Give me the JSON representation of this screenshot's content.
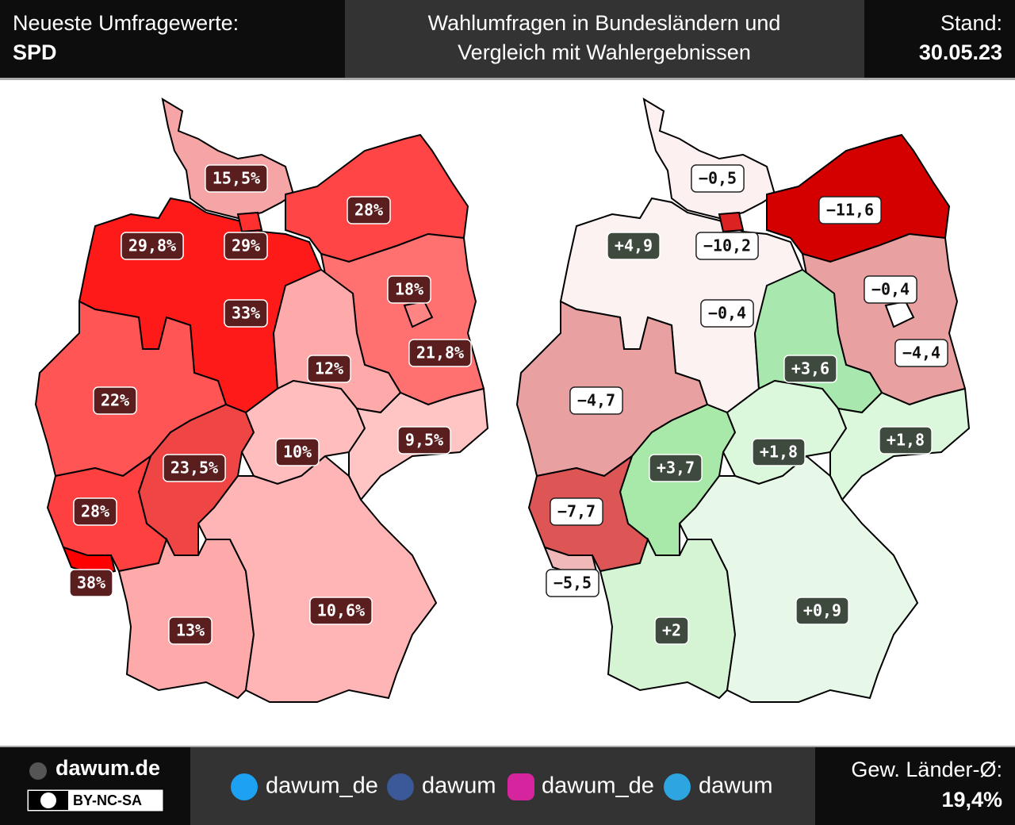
{
  "header": {
    "left_label": "Neueste Umfragewerte:",
    "party": "SPD",
    "title": [
      "Wahlumfragen in Bundesländern und",
      "Vergleich mit Wahlergebnissen"
    ],
    "stand_label": "Stand:",
    "date": "30.05.23"
  },
  "maps": [
    {
      "states": [
        {
          "label": "15,5%",
          "color": "#f5a5a5"
        },
        {
          "label": "29%",
          "color": "#ff3030"
        },
        {
          "label": "28%",
          "color": "#ff4545"
        },
        {
          "label": "33%",
          "color": "#ff1a1a"
        },
        {
          "label": "29,8%",
          "color": "#ff2a2a"
        },
        {
          "label": "18%",
          "color": "#ff8585"
        },
        {
          "label": "21,8%",
          "color": "#ff7070"
        },
        {
          "label": "12%",
          "color": "#ffaaaa"
        },
        {
          "label": "22%",
          "color": "#ff5555"
        },
        {
          "label": "23,5%",
          "color": "#f04545"
        },
        {
          "label": "10%",
          "color": "#ffbdbd"
        },
        {
          "label": "9,5%",
          "color": "#ffc4c4"
        },
        {
          "label": "28%",
          "color": "#ff4040"
        },
        {
          "label": "38%",
          "color": "#ff0000"
        },
        {
          "label": "13%",
          "color": "#ffaaaa"
        },
        {
          "label": "10,6%",
          "color": "#ffb5b5"
        }
      ]
    },
    {
      "states": [
        {
          "label": "−0,5",
          "color": "#fdf0f0"
        },
        {
          "label": "−10,2",
          "color": "#dd2222"
        },
        {
          "label": "−11,6",
          "color": "#d40000"
        },
        {
          "label": "−0,4",
          "color": "#fdf2f2"
        },
        {
          "label": "+4,9",
          "color": "#a8e8a8"
        },
        {
          "label": "−0,4",
          "color": "#ffffff"
        },
        {
          "label": "−4,4",
          "color": "#e8a0a0"
        },
        {
          "label": "+3,6",
          "color": "#a8e8ae"
        },
        {
          "label": "−4,7",
          "color": "#e8a0a0"
        },
        {
          "label": "+3,7",
          "color": "#a8e8a8"
        },
        {
          "label": "+1,8",
          "color": "#dcf8dc"
        },
        {
          "label": "+1,8",
          "color": "#dcf8dc"
        },
        {
          "label": "−7,7",
          "color": "#dd5555"
        },
        {
          "label": "−5,5",
          "color": "#f0b8b8"
        },
        {
          "label": "+2",
          "color": "#d4f4d4"
        },
        {
          "label": "+0,9",
          "color": "#e8f8e8"
        }
      ]
    }
  ],
  "footer": {
    "brand": "dawum.de",
    "license": "BY-NC-SA",
    "socials": [
      "dawum_de",
      "dawum",
      "dawum_de",
      "dawum"
    ],
    "average_label": "Gew. Länder-Ø:",
    "average": "19,4%"
  }
}
